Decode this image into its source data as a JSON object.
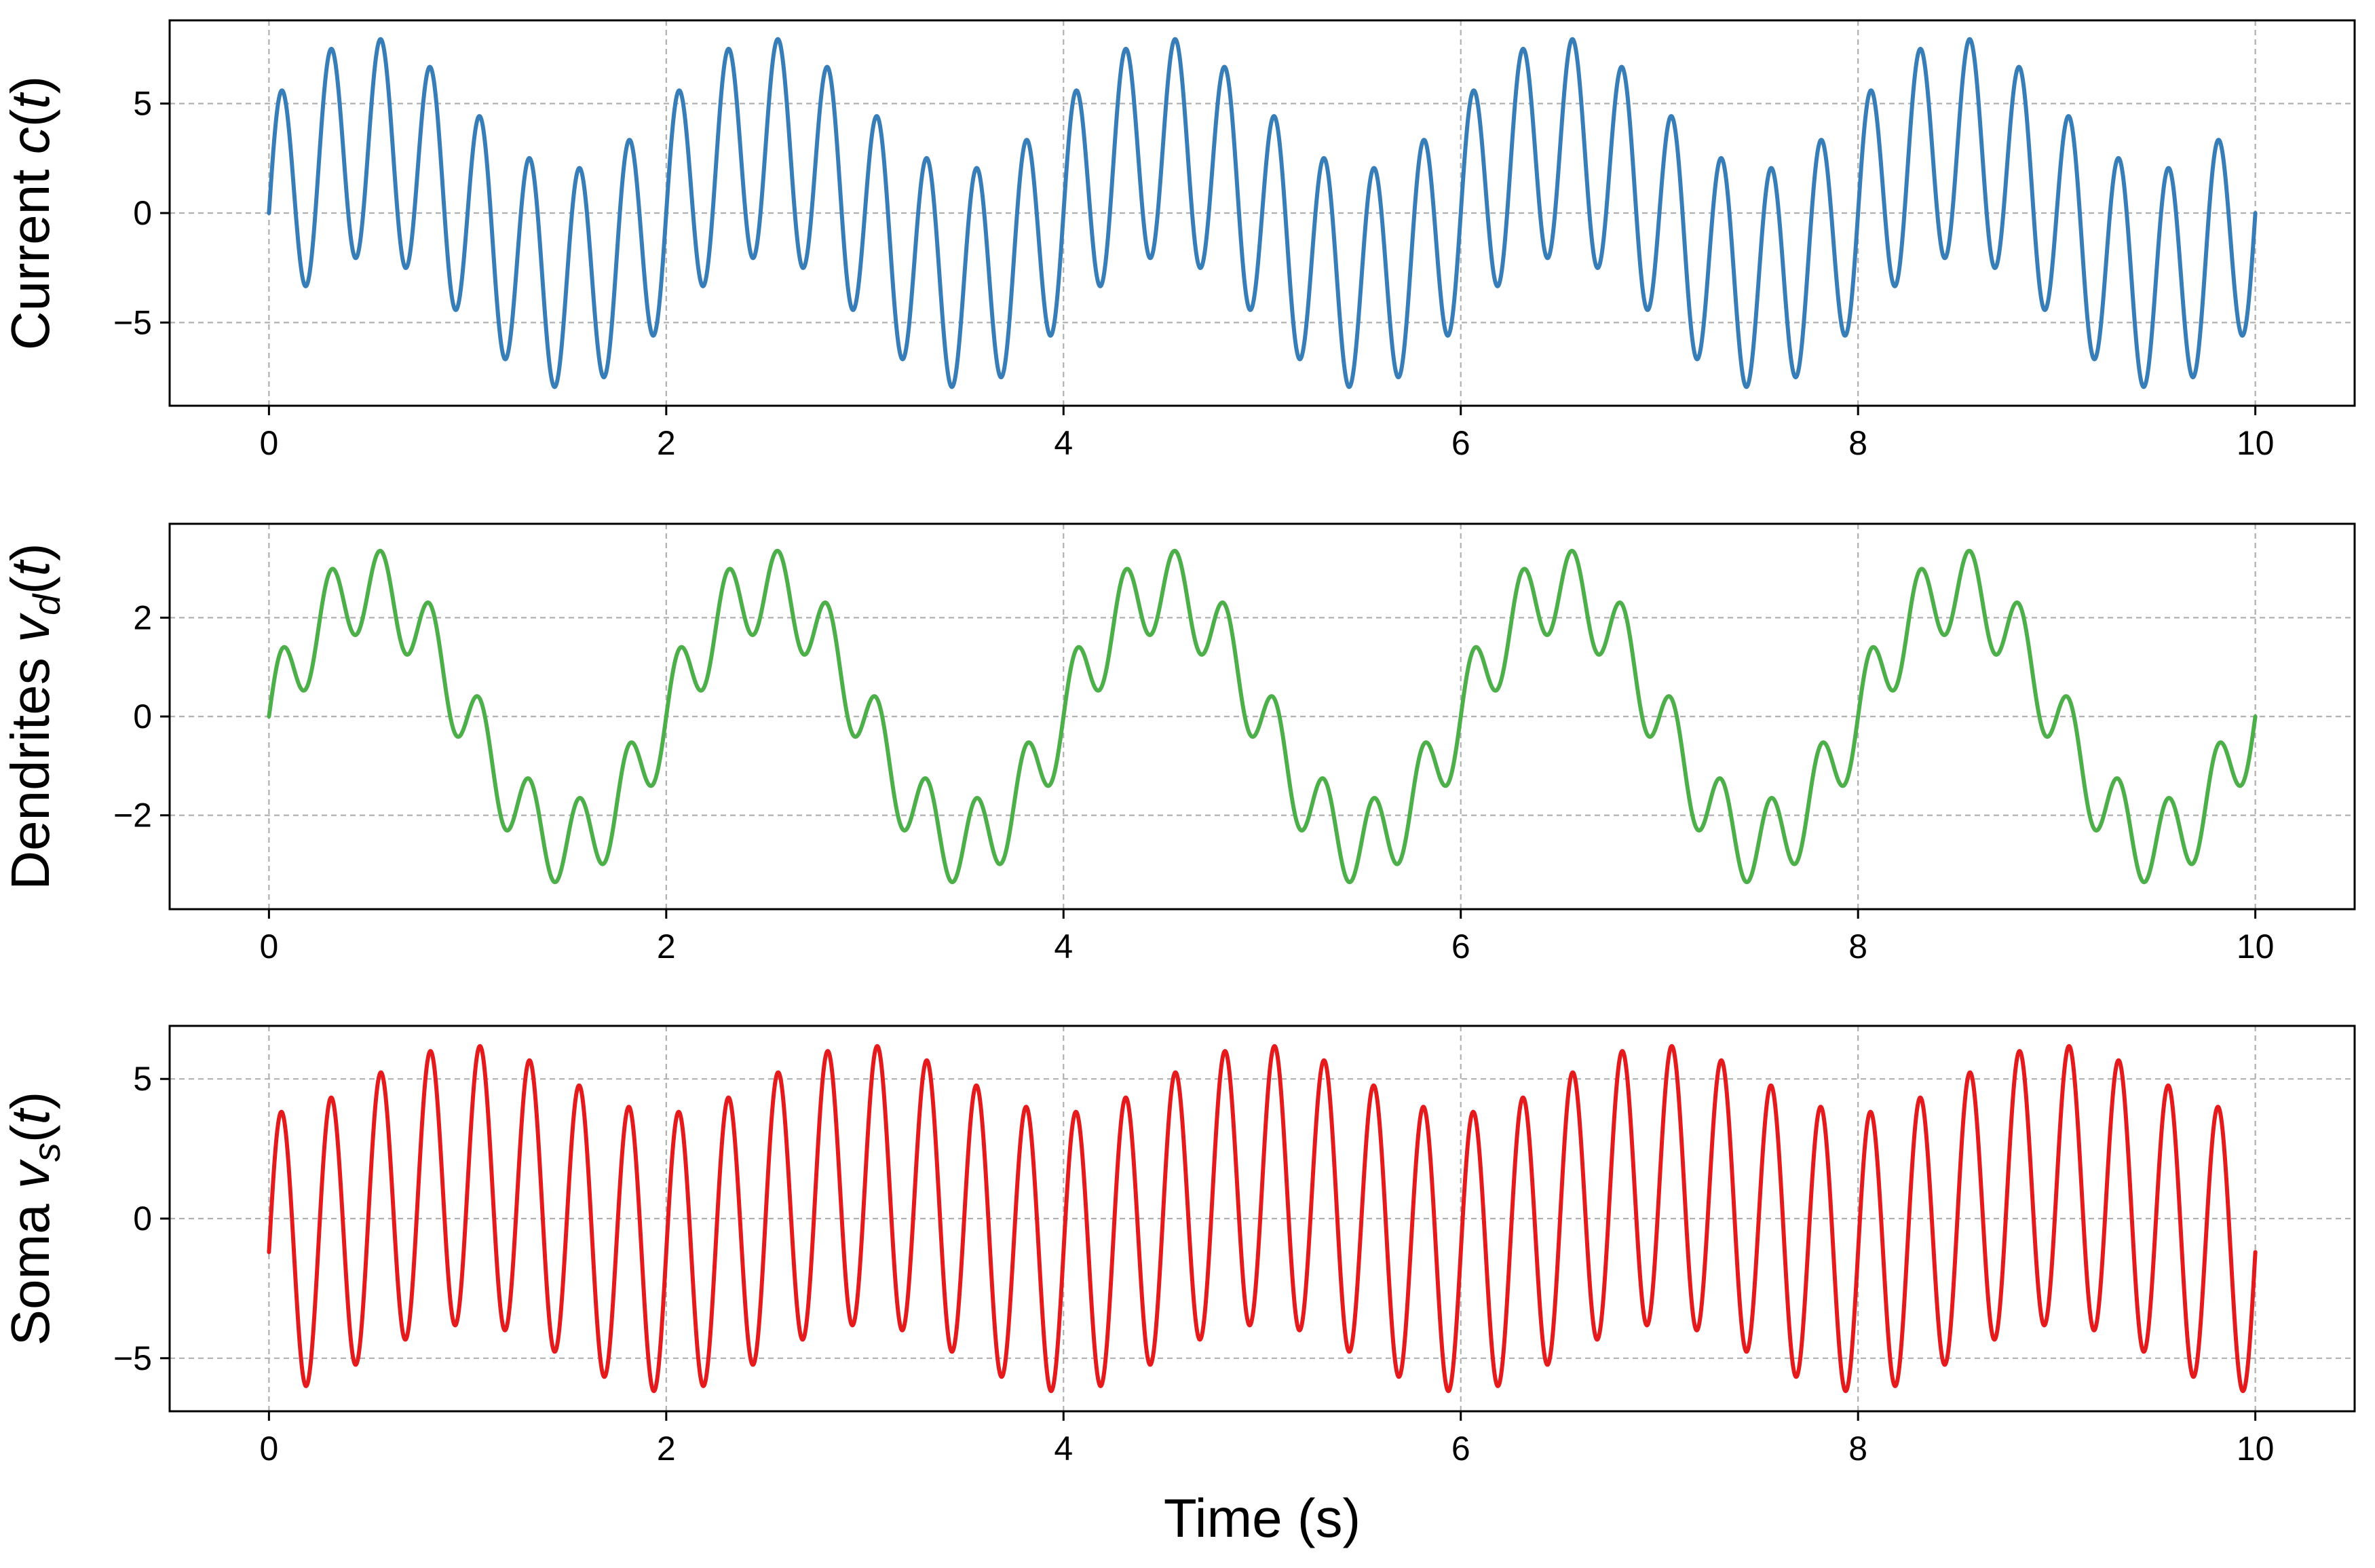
{
  "chart_data": [
    {
      "type": "line",
      "ylabel": "Current c(t)",
      "ylabel_parts": {
        "text": "Current ",
        "var": "c",
        "sub": "",
        "args": "(t)"
      },
      "xlabel": "",
      "xlim": [
        -0.5,
        10.5
      ],
      "ylim": [
        -8.8,
        8.8
      ],
      "xticks": [
        0,
        2,
        4,
        6,
        8,
        10
      ],
      "yticks": [
        -5,
        0,
        5
      ],
      "grid": true,
      "series": [
        {
          "color": "#377eb8",
          "x_start": 0,
          "x_end": 10,
          "components": [
            {
              "amplitude": 5.0,
              "frequency_hz": 4.0
            },
            {
              "amplitude": 3.0,
              "frequency_hz": 0.5
            }
          ]
        }
      ]
    },
    {
      "type": "line",
      "ylabel": "Dendrites vd(t)",
      "ylabel_parts": {
        "text": "Dendrites ",
        "var": "v",
        "sub": "d",
        "args": "(t)"
      },
      "xlabel": "",
      "xlim": [
        -0.5,
        10.5
      ],
      "ylim": [
        -3.9,
        3.9
      ],
      "xticks": [
        0,
        2,
        4,
        6,
        8,
        10
      ],
      "yticks": [
        -2,
        0,
        2
      ],
      "grid": true,
      "series": [
        {
          "color": "#4daf4a",
          "x_start": 0,
          "x_end": 10,
          "components": [
            {
              "amplitude": 0.85,
              "frequency_hz": 4.0
            },
            {
              "amplitude": 2.55,
              "frequency_hz": 0.5
            }
          ]
        }
      ]
    },
    {
      "type": "line",
      "ylabel": "Soma vs(t)",
      "ylabel_parts": {
        "text": "Soma ",
        "var": "v",
        "sub": "s",
        "args": "(t)"
      },
      "xlabel": "Time (s)",
      "xlim": [
        -0.5,
        10.5
      ],
      "ylim": [
        -6.9,
        6.9
      ],
      "xticks": [
        0,
        2,
        4,
        6,
        8,
        10
      ],
      "yticks": [
        -5,
        0,
        5
      ],
      "grid": true,
      "series": [
        {
          "color": "#e41a1c",
          "x_start": 0,
          "x_end": 10,
          "components": [
            {
              "amplitude": 5.0,
              "frequency_hz": 4.0
            },
            {
              "amplitude": 1.2,
              "frequency_hz": 0.5,
              "phase": -1.5708
            }
          ]
        }
      ]
    }
  ]
}
